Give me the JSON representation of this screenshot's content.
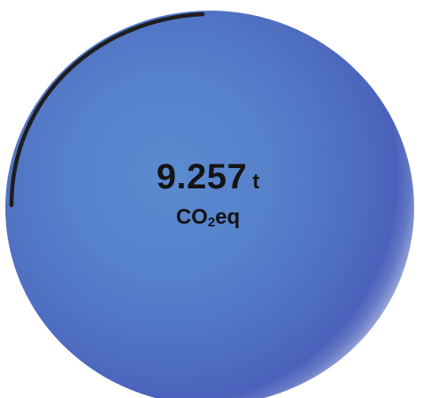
{
  "gauge": {
    "value": "9.257",
    "unit": "t",
    "gas_prefix": "CO",
    "gas_subscript": "2",
    "gas_suffix": "eq",
    "color_orb": "#5681cb",
    "color_arc": "#1e1e1e"
  }
}
